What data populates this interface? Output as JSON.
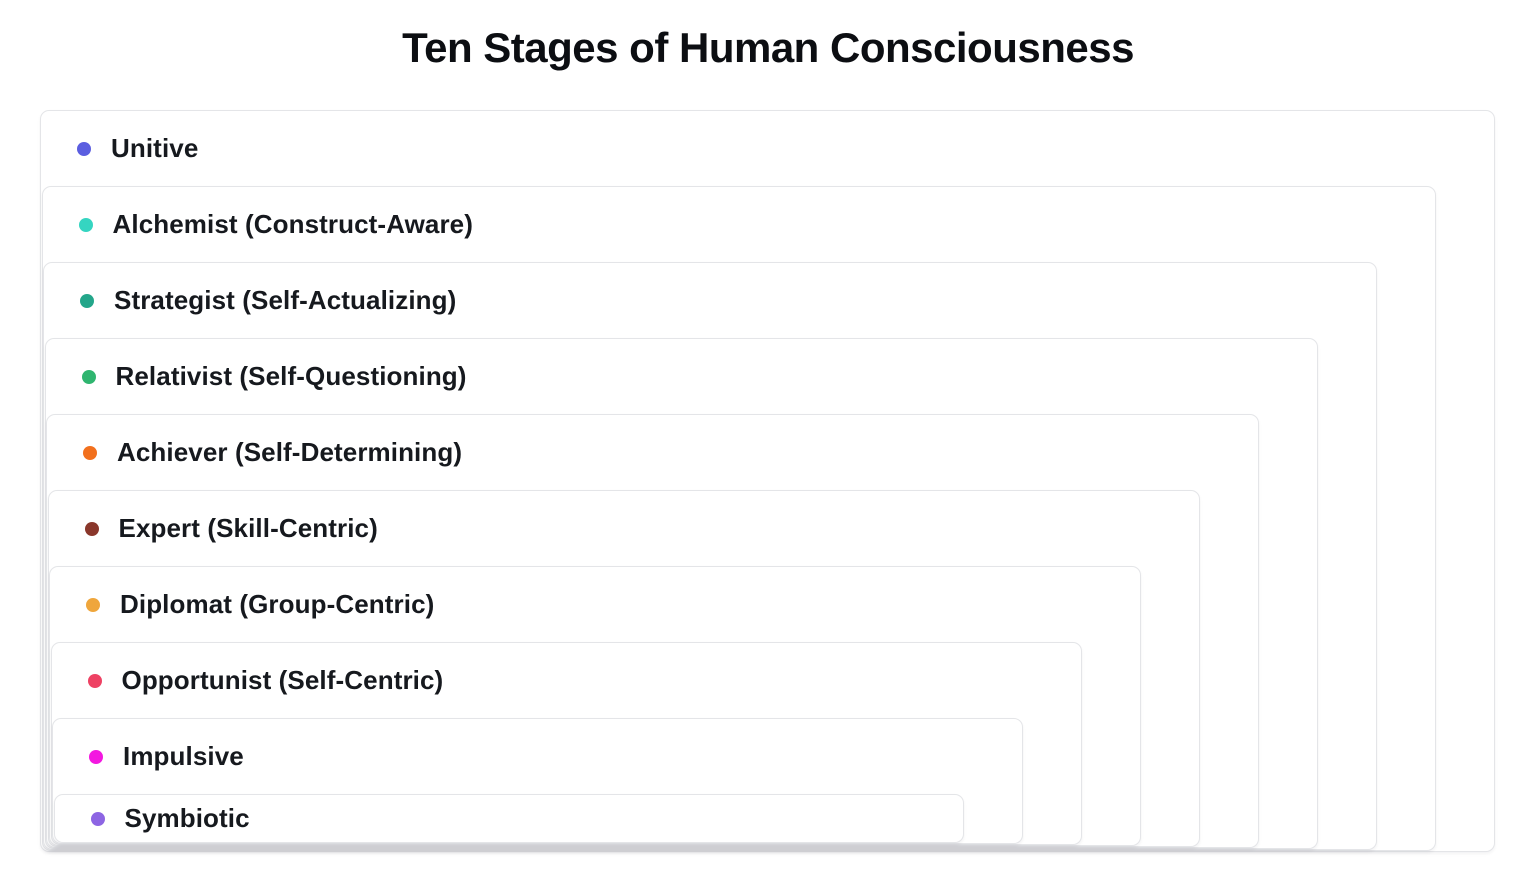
{
  "title": "Ten Stages of Human Consciousness",
  "stages": [
    {
      "label": "Unitive",
      "color": "#5b5ee0"
    },
    {
      "label": "Alchemist (Construct-Aware)",
      "color": "#35d5c1"
    },
    {
      "label": "Strategist (Self-Actualizing)",
      "color": "#23a68a"
    },
    {
      "label": "Relativist (Self-Questioning)",
      "color": "#2fb56f"
    },
    {
      "label": "Achiever (Self-Determining)",
      "color": "#f2701d"
    },
    {
      "label": "Expert (Skill-Centric)",
      "color": "#8a372b"
    },
    {
      "label": "Diplomat (Group-Centric)",
      "color": "#efa63c"
    },
    {
      "label": "Opportunist (Self-Centric)",
      "color": "#ee4163"
    },
    {
      "label": "Impulsive",
      "color": "#f318e0"
    },
    {
      "label": "Symbiotic",
      "color": "#8d65e3"
    }
  ]
}
